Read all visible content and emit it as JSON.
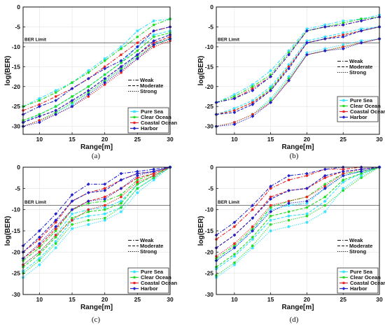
{
  "colors": {
    "Pure Sea": "#33e0ff",
    "Clear Ocean": "#22dd22",
    "Coastal Ocean": "#ee2222",
    "Harbor": "#2222cc",
    "axis": "#111111",
    "grid": "#e3e3e3"
  },
  "legend_series": [
    "Pure Sea",
    "Clear Ocean",
    "Coastal Ocean",
    "Harbor"
  ],
  "legend_styles": [
    "Weak",
    "Moderate",
    "Strong"
  ],
  "ber_limit_label": "BER Limit",
  "ber_limit_value": -9,
  "chart_data": [
    {
      "type": "line",
      "caption": "(a)",
      "xlabel": "Range[m]",
      "ylabel": "log(BER)",
      "xlim": [
        7.5,
        30
      ],
      "ylim": [
        -32,
        0
      ],
      "xticks": [
        10,
        15,
        20,
        25,
        30
      ],
      "yticks": [
        0,
        -5,
        -10,
        -15,
        -20,
        -25,
        -30
      ],
      "grid": true,
      "x": [
        7.5,
        10,
        12.5,
        15,
        17.5,
        20,
        22.5,
        25,
        27.5,
        30
      ],
      "series": [
        {
          "name": "Pure Sea",
          "style": "Weak",
          "values": [
            -25,
            -23,
            -21,
            -19,
            -16,
            -13,
            -10,
            -6,
            -3.5,
            -3
          ]
        },
        {
          "name": "Pure Sea",
          "style": "Moderate",
          "values": [
            -29,
            -27,
            -25,
            -22.5,
            -20,
            -17,
            -14,
            -10,
            -7,
            -6
          ]
        },
        {
          "name": "Pure Sea",
          "style": "Strong",
          "values": [
            -30,
            -28.5,
            -26.5,
            -24.5,
            -21.5,
            -18.5,
            -15.5,
            -12,
            -9,
            -8
          ]
        },
        {
          "name": "Clear Ocean",
          "style": "Weak",
          "values": [
            -25,
            -23.5,
            -21.5,
            -19,
            -16.5,
            -13.5,
            -10.5,
            -7.5,
            -4.5,
            -3
          ]
        },
        {
          "name": "Clear Ocean",
          "style": "Moderate",
          "values": [
            -28.5,
            -27,
            -25,
            -22.5,
            -20,
            -17,
            -14,
            -11,
            -7.5,
            -6.5
          ]
        },
        {
          "name": "Clear Ocean",
          "style": "Strong",
          "values": [
            -30,
            -28.5,
            -26.5,
            -24,
            -21.5,
            -18.5,
            -15.5,
            -12.5,
            -9.5,
            -8
          ]
        },
        {
          "name": "Coastal Ocean",
          "style": "Weak",
          "values": [
            -26,
            -24.5,
            -22.5,
            -20.5,
            -18,
            -15,
            -12,
            -9,
            -6,
            -5
          ]
        },
        {
          "name": "Coastal Ocean",
          "style": "Moderate",
          "values": [
            -29,
            -27.5,
            -26,
            -23.5,
            -21,
            -18,
            -15,
            -12,
            -9,
            -7.5
          ]
        },
        {
          "name": "Coastal Ocean",
          "style": "Strong",
          "values": [
            -30,
            -28.5,
            -27,
            -25,
            -22.5,
            -19.5,
            -16.5,
            -13,
            -10,
            -8.5
          ]
        },
        {
          "name": "Harbor",
          "style": "Weak",
          "values": [
            -27,
            -25,
            -23.5,
            -20.5,
            -18,
            -15.5,
            -13.5,
            -10,
            -6,
            -5
          ]
        },
        {
          "name": "Harbor",
          "style": "Moderate",
          "values": [
            -29,
            -27.5,
            -26,
            -23.5,
            -21,
            -18,
            -15,
            -12,
            -8.5,
            -7
          ]
        },
        {
          "name": "Harbor",
          "style": "Strong",
          "values": [
            -30,
            -29,
            -27,
            -25,
            -22,
            -19,
            -16,
            -13,
            -9.5,
            -8
          ]
        }
      ]
    },
    {
      "type": "line",
      "caption": "(b)",
      "xlabel": "Range[m]",
      "ylabel": "log(BER)",
      "xlim": [
        7.5,
        30
      ],
      "ylim": [
        -32,
        0
      ],
      "xticks": [
        10,
        15,
        20,
        25,
        30
      ],
      "yticks": [
        0,
        -5,
        -10,
        -15,
        -20,
        -25,
        -30
      ],
      "grid": true,
      "x": [
        7.5,
        10,
        12.5,
        15,
        17.5,
        20,
        22.5,
        25,
        27.5,
        30
      ],
      "series": [
        {
          "name": "Pure Sea",
          "style": "Weak",
          "values": [
            -24,
            -22,
            -19.5,
            -16,
            -11,
            -5.5,
            -4.5,
            -3.5,
            -3,
            -2
          ]
        },
        {
          "name": "Pure Sea",
          "style": "Moderate",
          "values": [
            -27,
            -25.5,
            -23.5,
            -20,
            -14.5,
            -8.5,
            -7.5,
            -6.5,
            -5.5,
            -5
          ]
        },
        {
          "name": "Pure Sea",
          "style": "Strong",
          "values": [
            -30,
            -29,
            -27,
            -23,
            -17.5,
            -11.5,
            -10.5,
            -9.5,
            -8.5,
            -8
          ]
        },
        {
          "name": "Clear Ocean",
          "style": "Weak",
          "values": [
            -24,
            -22.5,
            -20,
            -17,
            -11.5,
            -6,
            -5,
            -4,
            -3,
            -2.5
          ]
        },
        {
          "name": "Clear Ocean",
          "style": "Moderate",
          "values": [
            -27,
            -26,
            -24,
            -20.5,
            -15,
            -9,
            -8,
            -7,
            -6,
            -5
          ]
        },
        {
          "name": "Clear Ocean",
          "style": "Strong",
          "values": [
            -30,
            -29,
            -27,
            -23.5,
            -18,
            -12,
            -11,
            -10,
            -9,
            -8
          ]
        },
        {
          "name": "Coastal Ocean",
          "style": "Weak",
          "values": [
            -24,
            -23,
            -20.5,
            -17.5,
            -12,
            -6,
            -5,
            -4.5,
            -3.5,
            -2.5
          ]
        },
        {
          "name": "Coastal Ocean",
          "style": "Moderate",
          "values": [
            -27,
            -26,
            -24,
            -21,
            -15,
            -9,
            -8,
            -7,
            -6,
            -5
          ]
        },
        {
          "name": "Coastal Ocean",
          "style": "Strong",
          "values": [
            -30,
            -29,
            -27,
            -24,
            -18.5,
            -12,
            -11,
            -10,
            -9,
            -8
          ]
        },
        {
          "name": "Harbor",
          "style": "Weak",
          "values": [
            -24,
            -23,
            -21,
            -17.5,
            -12,
            -6,
            -5,
            -4.5,
            -3.5,
            -2.5
          ]
        },
        {
          "name": "Harbor",
          "style": "Moderate",
          "values": [
            -27,
            -26.5,
            -24.5,
            -21,
            -15.5,
            -9,
            -8,
            -7.5,
            -6,
            -5
          ]
        },
        {
          "name": "Harbor",
          "style": "Strong",
          "values": [
            -30,
            -29.5,
            -27.5,
            -24,
            -18.5,
            -12,
            -11,
            -10.5,
            -9,
            -8
          ]
        }
      ]
    },
    {
      "type": "line",
      "caption": "(c)",
      "xlabel": "Range[m]",
      "ylabel": "log(BER)",
      "xlim": [
        7.5,
        30
      ],
      "ylim": [
        -30,
        0
      ],
      "xticks": [
        10,
        15,
        20,
        25,
        30
      ],
      "yticks": [
        0,
        -5,
        -10,
        -15,
        -20,
        -25,
        -30
      ],
      "grid": true,
      "x": [
        7.5,
        10,
        12.5,
        15,
        17.5,
        20,
        22.5,
        25,
        27.5,
        30
      ],
      "series": [
        {
          "name": "Pure Sea",
          "style": "Weak",
          "values": [
            -23,
            -20,
            -16,
            -11,
            -10,
            -9.5,
            -8,
            -4,
            -2,
            0
          ]
        },
        {
          "name": "Pure Sea",
          "style": "Moderate",
          "values": [
            -24.5,
            -21.5,
            -17.5,
            -12.5,
            -11.5,
            -11,
            -9.5,
            -5,
            -2.5,
            0
          ]
        },
        {
          "name": "Pure Sea",
          "style": "Strong",
          "values": [
            -26,
            -23,
            -19,
            -14.5,
            -13.5,
            -12.5,
            -10.5,
            -6,
            -3,
            0
          ]
        },
        {
          "name": "Clear Ocean",
          "style": "Weak",
          "values": [
            -22,
            -19,
            -15,
            -10,
            -8.5,
            -8,
            -6.5,
            -3,
            -1.5,
            0
          ]
        },
        {
          "name": "Clear Ocean",
          "style": "Moderate",
          "values": [
            -23.5,
            -20.5,
            -16.5,
            -12,
            -10.5,
            -10,
            -8.5,
            -4,
            -2,
            0
          ]
        },
        {
          "name": "Clear Ocean",
          "style": "Strong",
          "values": [
            -25,
            -22,
            -18,
            -13.5,
            -12.5,
            -12,
            -9.5,
            -5,
            -2.5,
            0
          ]
        },
        {
          "name": "Coastal Ocean",
          "style": "Weak",
          "values": [
            -20,
            -17,
            -13,
            -8,
            -6,
            -5,
            -3,
            -1.5,
            -1,
            0
          ]
        },
        {
          "name": "Coastal Ocean",
          "style": "Moderate",
          "values": [
            -21.5,
            -18.5,
            -14.5,
            -10,
            -8,
            -7,
            -5,
            -2.5,
            -1.5,
            0
          ]
        },
        {
          "name": "Coastal Ocean",
          "style": "Strong",
          "values": [
            -23,
            -20,
            -16,
            -12.5,
            -10,
            -9,
            -7,
            -3.5,
            -2,
            0
          ]
        },
        {
          "name": "Harbor",
          "style": "Weak",
          "values": [
            -18.5,
            -15,
            -11,
            -6.5,
            -4,
            -4,
            -1.5,
            -1,
            -0.5,
            0
          ]
        },
        {
          "name": "Harbor",
          "style": "Moderate",
          "values": [
            -20,
            -16.5,
            -12.5,
            -8,
            -6,
            -5.5,
            -3,
            -1.5,
            -1,
            0
          ]
        },
        {
          "name": "Harbor",
          "style": "Strong",
          "values": [
            -21.5,
            -18,
            -14,
            -10,
            -8,
            -7.5,
            -5,
            -2,
            -1,
            0
          ]
        }
      ]
    },
    {
      "type": "line",
      "caption": "(d)",
      "xlabel": "Range[m]",
      "ylabel": "log(BER)",
      "xlim": [
        7.5,
        30
      ],
      "ylim": [
        -30,
        0
      ],
      "xticks": [
        10,
        15,
        20,
        25,
        30
      ],
      "yticks": [
        0,
        -5,
        -10,
        -15,
        -20,
        -25,
        -30
      ],
      "grid": true,
      "x": [
        7.5,
        10,
        12.5,
        15,
        17.5,
        20,
        22.5,
        25,
        27.5,
        30
      ],
      "series": [
        {
          "name": "Pure Sea",
          "style": "Weak",
          "values": [
            -22,
            -19,
            -15,
            -10,
            -9,
            -8.5,
            -5,
            -2,
            -1,
            0
          ]
        },
        {
          "name": "Pure Sea",
          "style": "Moderate",
          "values": [
            -24,
            -21,
            -17,
            -12.5,
            -11.5,
            -11,
            -8,
            -3.5,
            -1.5,
            0
          ]
        },
        {
          "name": "Pure Sea",
          "style": "Strong",
          "values": [
            -26,
            -23,
            -19,
            -15,
            -14,
            -13,
            -10.5,
            -5,
            -2,
            0
          ]
        },
        {
          "name": "Clear Ocean",
          "style": "Weak",
          "values": [
            -21.5,
            -18.5,
            -14.5,
            -9.5,
            -8,
            -7,
            -4,
            -1.5,
            -1,
            0
          ]
        },
        {
          "name": "Clear Ocean",
          "style": "Moderate",
          "values": [
            -23.5,
            -20.5,
            -16.5,
            -11.5,
            -10.5,
            -9.5,
            -7,
            -3,
            -1.5,
            0
          ]
        },
        {
          "name": "Clear Ocean",
          "style": "Strong",
          "values": [
            -25.5,
            -22.5,
            -18.5,
            -13.5,
            -12.5,
            -11.5,
            -9,
            -5.5,
            -2.5,
            0
          ]
        },
        {
          "name": "Coastal Ocean",
          "style": "Weak",
          "values": [
            -17,
            -14,
            -10,
            -5,
            -3,
            -2,
            -0.5,
            -0.5,
            0,
            0
          ]
        },
        {
          "name": "Coastal Ocean",
          "style": "Moderate",
          "values": [
            -19,
            -16,
            -12,
            -7,
            -5.5,
            -5,
            -2.5,
            -1,
            -0.5,
            0
          ]
        },
        {
          "name": "Coastal Ocean",
          "style": "Strong",
          "values": [
            -21,
            -18,
            -14,
            -9,
            -8,
            -7,
            -4.5,
            -1.5,
            -0.5,
            0
          ]
        },
        {
          "name": "Harbor",
          "style": "Weak",
          "values": [
            -16,
            -13,
            -9,
            -4.5,
            -2,
            -1.5,
            -0.5,
            0,
            0,
            0
          ]
        },
        {
          "name": "Harbor",
          "style": "Moderate",
          "values": [
            -19,
            -16,
            -12,
            -7.5,
            -5.5,
            -5,
            -2,
            -1,
            -0.5,
            0
          ]
        },
        {
          "name": "Harbor",
          "style": "Strong",
          "values": [
            -22,
            -19,
            -15,
            -10.5,
            -8.5,
            -8,
            -5,
            -2,
            -1,
            0
          ]
        }
      ]
    }
  ]
}
